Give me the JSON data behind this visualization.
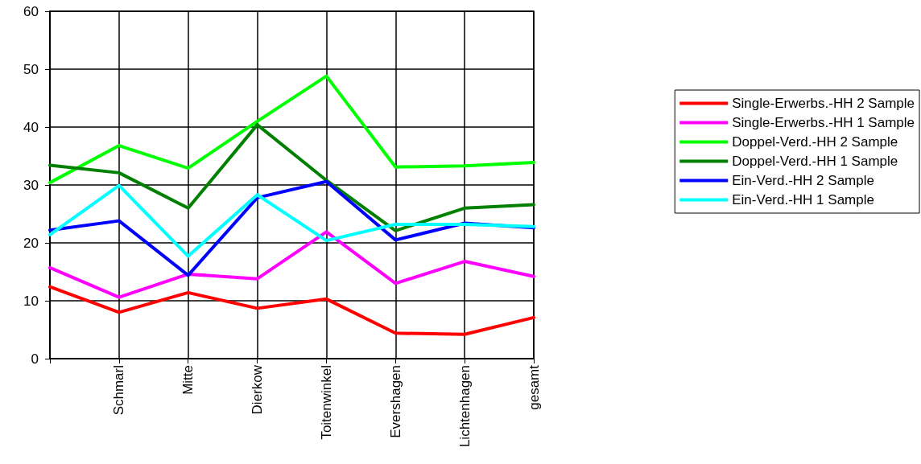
{
  "chart_data": {
    "type": "line",
    "categories": [
      null,
      "Schmarl",
      "Mitte",
      "Dierkow",
      "Toitenwinkel",
      "Evershagen",
      "Lichtenhagen",
      "gesamt"
    ],
    "series": [
      {
        "name": "Single-Erwerbs.-HH 2 Sample",
        "color": "#ff0000",
        "values": [
          12.4,
          8,
          11.4,
          8.7,
          10.3,
          4.4,
          4.2,
          7.1
        ]
      },
      {
        "name": "Single-Erwerbs.-HH 1 Sample",
        "color": "#ff00ff",
        "values": [
          15.7,
          10.6,
          14.6,
          13.8,
          21.9,
          13,
          16.8,
          14.2
        ]
      },
      {
        "name": "Doppel-Verd.-HH 2 Sample",
        "color": "#00ff00",
        "values": [
          30.4,
          36.8,
          32.9,
          41,
          48.8,
          33.1,
          33.3,
          33.9
        ]
      },
      {
        "name": "Doppel-Verd.-HH 1 Sample",
        "color": "#008000",
        "values": [
          33.4,
          32.1,
          26,
          40.4,
          30.8,
          22.1,
          26,
          26.6
        ]
      },
      {
        "name": "Ein-Verd.-HH 2 Sample",
        "color": "#0000ff",
        "values": [
          22.2,
          23.8,
          14.4,
          27.8,
          30.6,
          20.5,
          23.4,
          22.6
        ]
      },
      {
        "name": "Ein-Verd.-HH 1 Sample",
        "color": "#00ffff",
        "values": [
          21.4,
          29.9,
          17.7,
          28.3,
          20.4,
          23.2,
          23.2,
          22.8
        ]
      }
    ],
    "ylim": [
      0,
      60
    ],
    "yticks": [
      0,
      10,
      20,
      30,
      40,
      50,
      60
    ],
    "grid": true,
    "legend": "right",
    "marker": "none",
    "line_style": "solid"
  }
}
